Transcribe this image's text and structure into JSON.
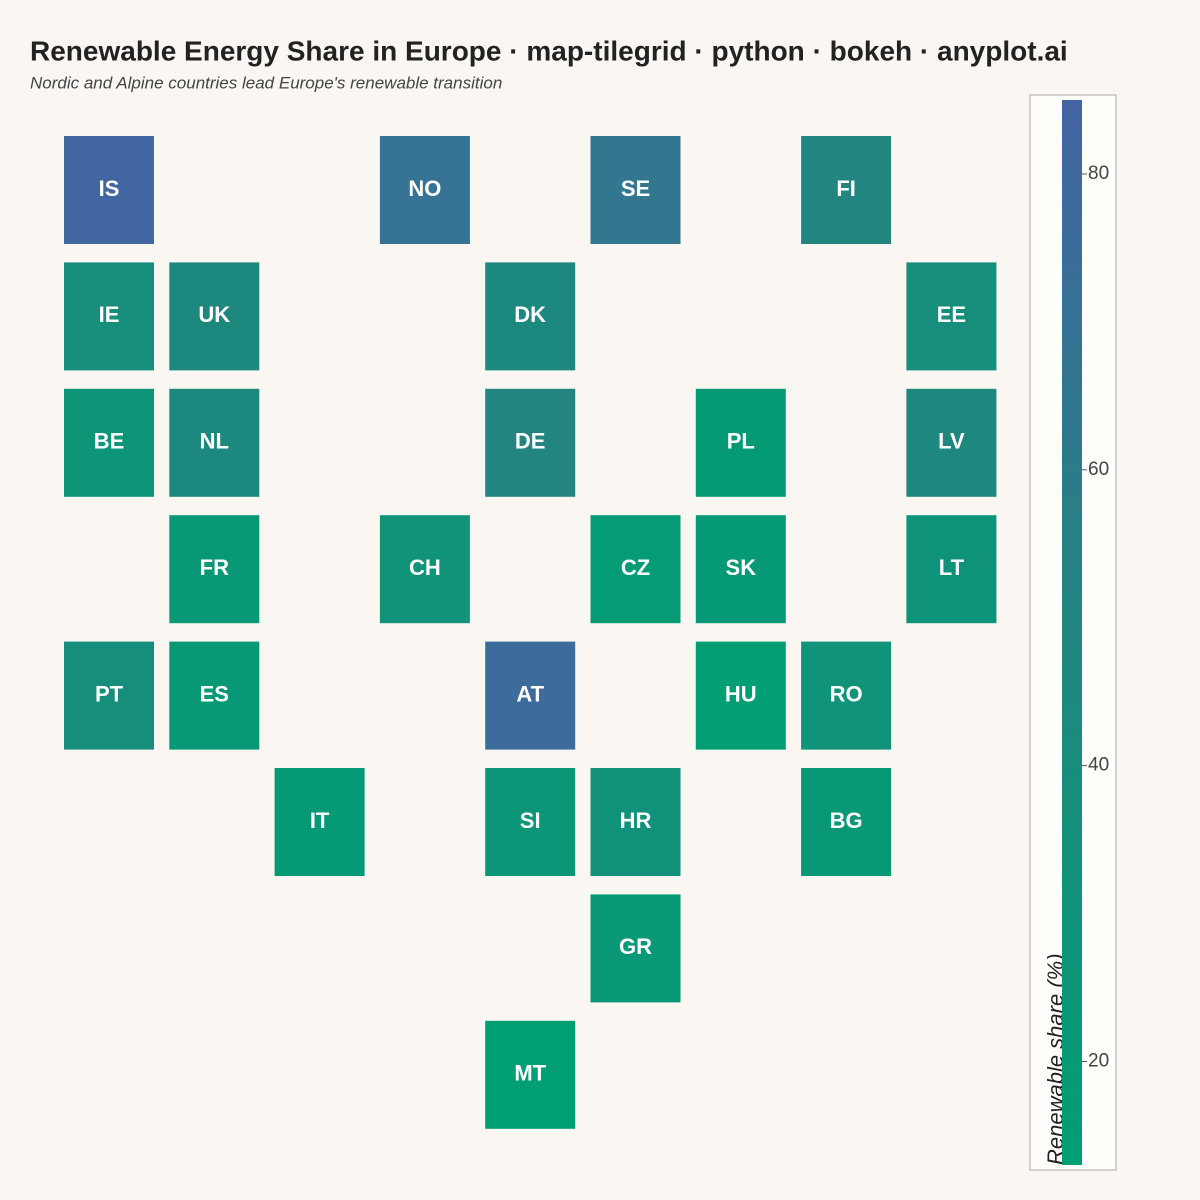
{
  "chart_data": {
    "type": "tilegrid",
    "title": "Renewable Energy Share in Europe · map-tilegrid · python · bokeh · anyplot.ai",
    "subtitle": "Nordic and Alpine countries lead Europe's renewable transition",
    "colorbar_label": "Renewable share (%)",
    "zlim": [
      13,
      85
    ],
    "zticks": [
      20,
      40,
      60,
      80
    ],
    "colormap": [
      "#009E73",
      "#21867F",
      "#4464A3"
    ],
    "tiles": [
      {
        "label": "IS",
        "row": 0,
        "col": 0,
        "value": 83
      },
      {
        "label": "NO",
        "row": 0,
        "col": 3,
        "value": 70
      },
      {
        "label": "SE",
        "row": 0,
        "col": 5,
        "value": 66
      },
      {
        "label": "FI",
        "row": 0,
        "col": 7,
        "value": 50
      },
      {
        "label": "IE",
        "row": 1,
        "col": 0,
        "value": 38
      },
      {
        "label": "UK",
        "row": 1,
        "col": 1,
        "value": 45
      },
      {
        "label": "DK",
        "row": 1,
        "col": 4,
        "value": 45
      },
      {
        "label": "EE",
        "row": 1,
        "col": 8,
        "value": 38
      },
      {
        "label": "BE",
        "row": 2,
        "col": 0,
        "value": 26
      },
      {
        "label": "NL",
        "row": 2,
        "col": 1,
        "value": 45
      },
      {
        "label": "DE",
        "row": 2,
        "col": 4,
        "value": 50
      },
      {
        "label": "PL",
        "row": 2,
        "col": 6,
        "value": 17
      },
      {
        "label": "LV",
        "row": 2,
        "col": 8,
        "value": 46
      },
      {
        "label": "FR",
        "row": 3,
        "col": 1,
        "value": 22
      },
      {
        "label": "CH",
        "row": 3,
        "col": 3,
        "value": 30
      },
      {
        "label": "CZ",
        "row": 3,
        "col": 5,
        "value": 18
      },
      {
        "label": "SK",
        "row": 3,
        "col": 6,
        "value": 20
      },
      {
        "label": "LT",
        "row": 3,
        "col": 8,
        "value": 29
      },
      {
        "label": "PT",
        "row": 4,
        "col": 0,
        "value": 38
      },
      {
        "label": "ES",
        "row": 4,
        "col": 1,
        "value": 22
      },
      {
        "label": "AT",
        "row": 4,
        "col": 4,
        "value": 78
      },
      {
        "label": "HU",
        "row": 4,
        "col": 6,
        "value": 14
      },
      {
        "label": "RO",
        "row": 4,
        "col": 7,
        "value": 30
      },
      {
        "label": "IT",
        "row": 5,
        "col": 2,
        "value": 20
      },
      {
        "label": "SI",
        "row": 5,
        "col": 4,
        "value": 25
      },
      {
        "label": "HR",
        "row": 5,
        "col": 5,
        "value": 33
      },
      {
        "label": "BG",
        "row": 5,
        "col": 7,
        "value": 22
      },
      {
        "label": "GR",
        "row": 6,
        "col": 5,
        "value": 22
      },
      {
        "label": "MT",
        "row": 7,
        "col": 4,
        "value": 13
      }
    ]
  }
}
